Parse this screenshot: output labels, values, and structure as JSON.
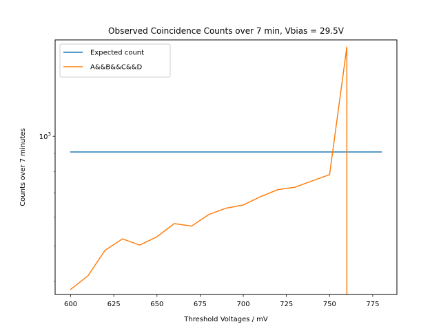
{
  "chart_data": {
    "type": "line",
    "title": "Observed Coincidence Counts over 7 min, Vbias = 29.5V",
    "xlabel": "Threshold Voltages / mV",
    "ylabel": "Counts over 7 minutes",
    "xscale": "linear",
    "yscale": "log",
    "xlim": [
      591,
      789
    ],
    "ylim": [
      368,
      1840
    ],
    "x_ticks": [
      600,
      625,
      650,
      675,
      700,
      725,
      750,
      775
    ],
    "x_tick_labels": [
      "600",
      "625",
      "650",
      "675",
      "700",
      "725",
      "750",
      "775"
    ],
    "y_ticks": [
      1000
    ],
    "y_tick_labels": [
      {
        "base": "10",
        "exp": "3"
      }
    ],
    "y_minor_ticks": [
      400,
      500,
      600,
      700,
      800,
      900
    ],
    "grid": false,
    "legend": "upper left",
    "series": [
      {
        "name": "Expected count",
        "color": "#1f77b4",
        "x": [
          600,
          780
        ],
        "y": [
          906,
          906
        ]
      },
      {
        "name": "A&&B&&C&&D",
        "color": "#ff7f0e",
        "x": [
          600,
          610,
          620,
          630,
          640,
          650,
          660,
          670,
          680,
          690,
          700,
          710,
          720,
          730,
          740,
          750,
          760,
          760
        ],
        "y": [
          380,
          414,
          487,
          523,
          503,
          530,
          576,
          567,
          610,
          635,
          648,
          683,
          714,
          725,
          755,
          785,
          1760,
          300
        ]
      }
    ]
  }
}
